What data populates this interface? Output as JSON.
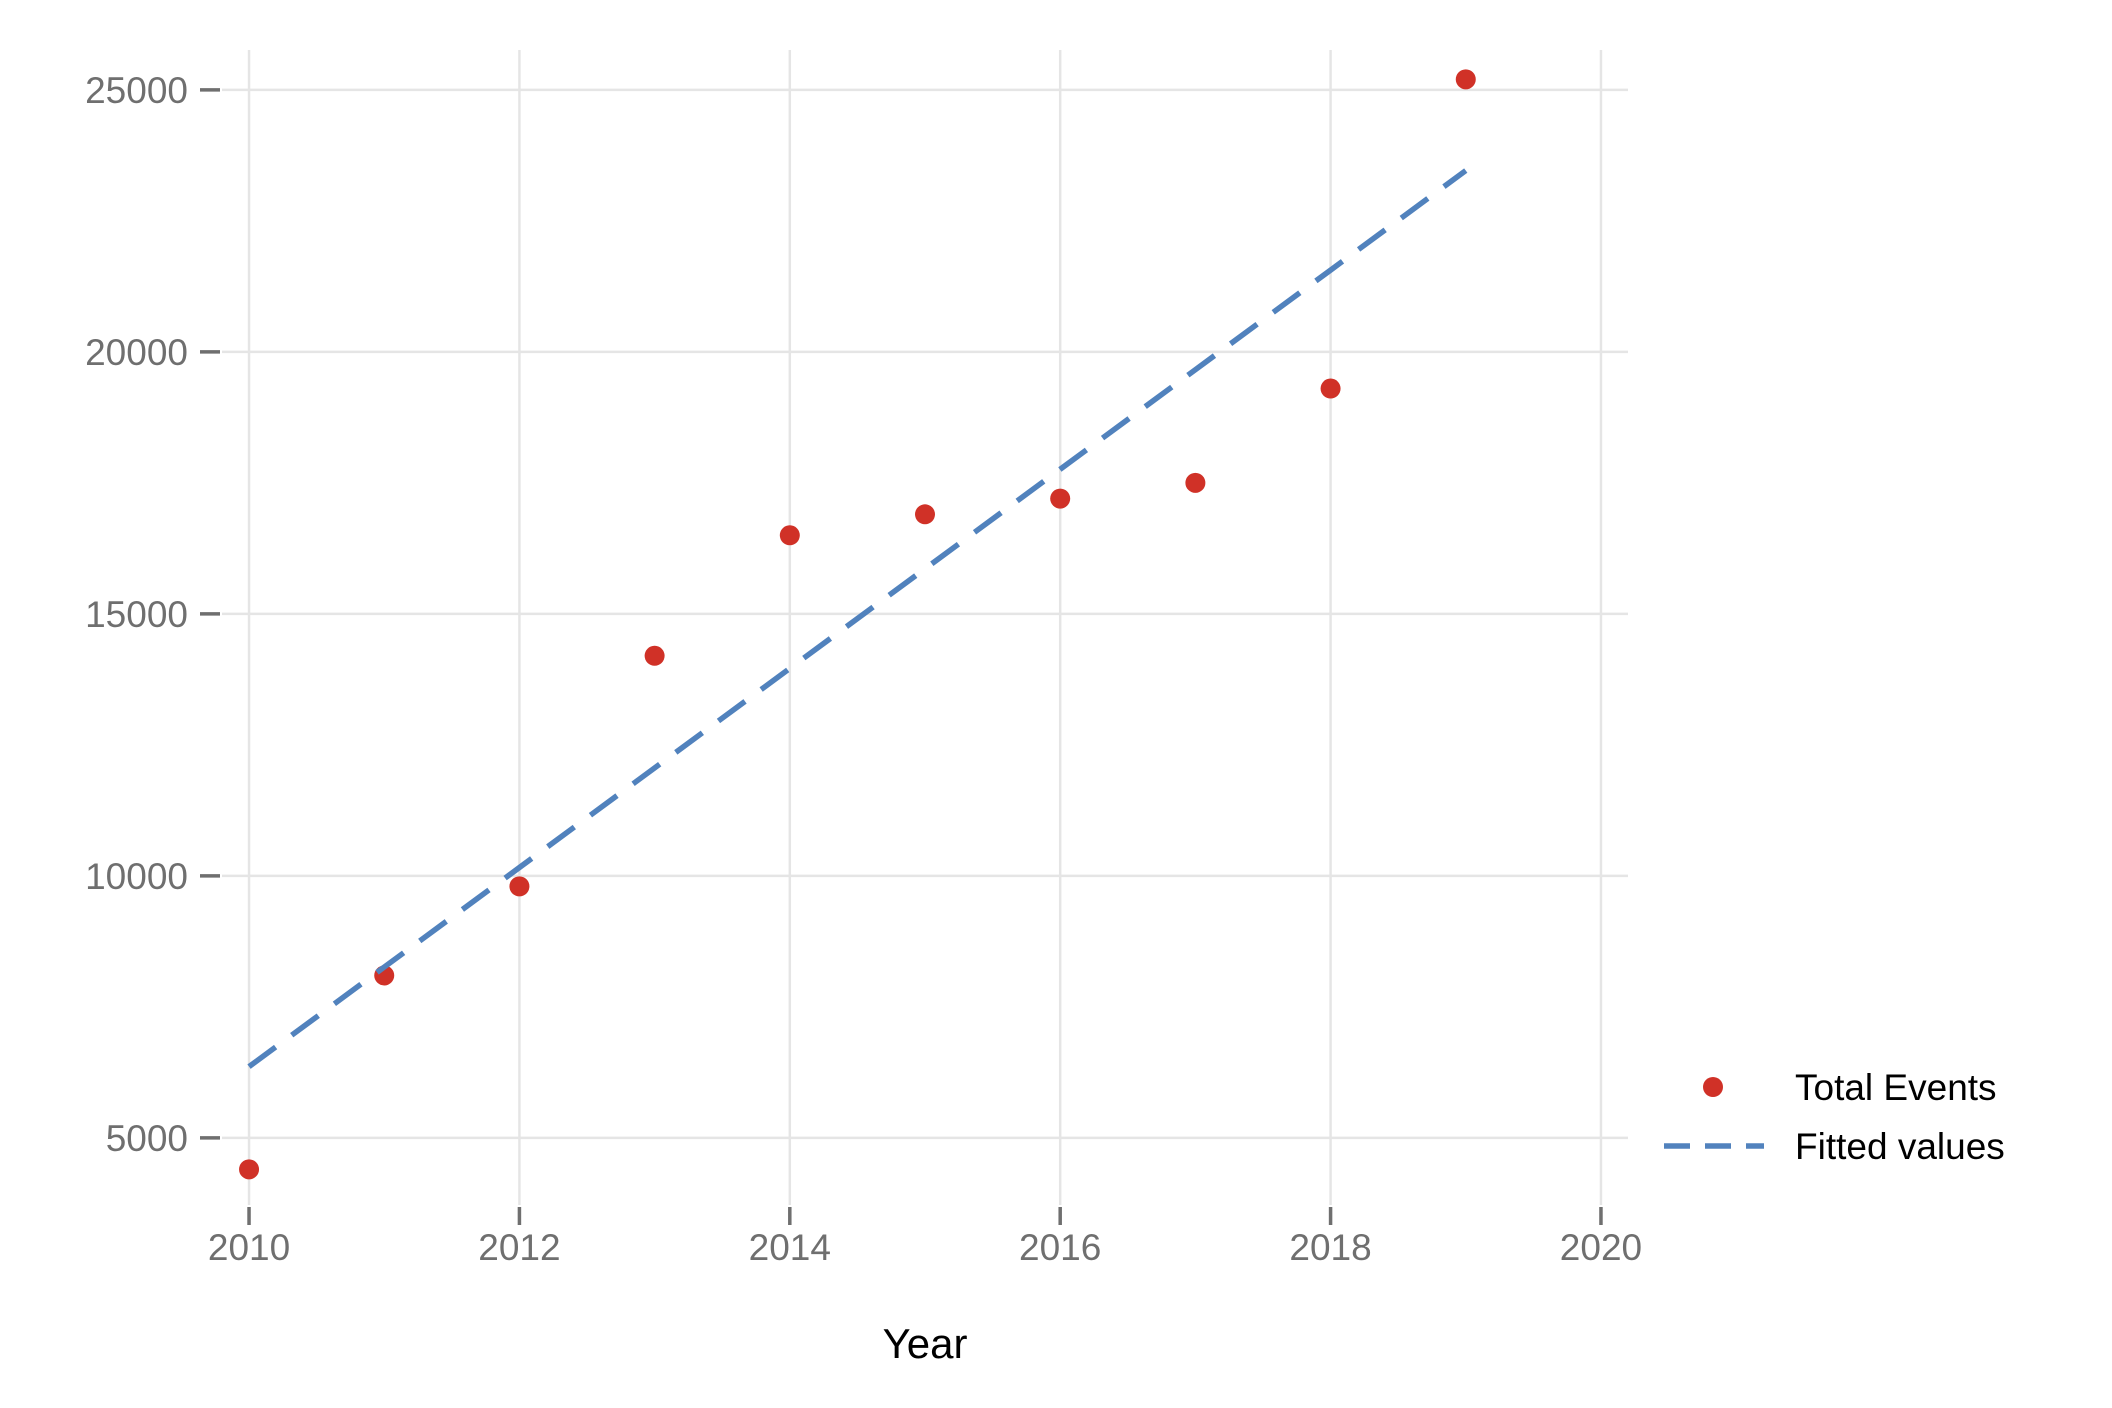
{
  "chart_data": {
    "type": "scatter",
    "title": "",
    "xlabel": "Year",
    "ylabel": "",
    "x": [
      2010,
      2011,
      2012,
      2013,
      2014,
      2015,
      2016,
      2017,
      2018,
      2019
    ],
    "series": [
      {
        "name": "Total Events",
        "type": "points",
        "color": "#d03127",
        "values": [
          4400,
          8100,
          9800,
          14200,
          16500,
          16900,
          17200,
          17500,
          19300,
          25200
        ]
      },
      {
        "name": "Fitted values",
        "type": "dashed-line",
        "color": "#5182bd",
        "values": [
          6360,
          8260,
          10160,
          12060,
          13960,
          15860,
          17760,
          19660,
          21560,
          23460
        ]
      }
    ],
    "xlim": [
      2009.8,
      2020.2
    ],
    "ylim": [
      3720,
      25760
    ],
    "x_ticks": [
      2010,
      2012,
      2014,
      2016,
      2018,
      2020
    ],
    "y_ticks": [
      5000,
      10000,
      15000,
      20000,
      25000
    ],
    "grid": true,
    "legend_position": "right-bottom",
    "colors": {
      "points": "#d03127",
      "fitted_line": "#5182bd",
      "gridline": "#e5e5e5",
      "tick": "#6f6f6f",
      "tick_label": "#6f6f6f",
      "axis_title": "#000000",
      "legend_text": "#000000",
      "background": "#ffffff"
    }
  }
}
